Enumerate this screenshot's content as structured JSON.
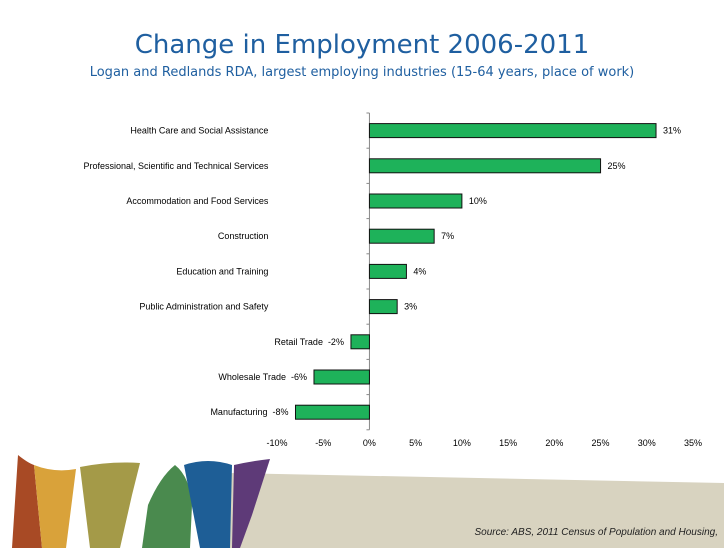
{
  "title": "Change in Employment 2006-2011",
  "subtitle": "Logan and Redlands RDA, largest employing industries (15-64 years, place of work)",
  "source": "Source: ABS, 2011 Census of Population and Housing,",
  "colors": {
    "title": "#1f5fa0",
    "bar": "#1eb25a",
    "band_1": "#a84a25",
    "band_2": "#d9a23a",
    "band_3": "#a49a48",
    "band_4": "#4a8a4e",
    "band_5": "#1e5e96",
    "band_6": "#5e3a78",
    "footer_bg": "#d8d3c0"
  },
  "chart_data": {
    "type": "bar",
    "orientation": "horizontal",
    "categories": [
      "Health Care and Social Assistance",
      "Professional, Scientific and Technical Services",
      "Accommodation and Food Services",
      "Construction",
      "Education and Training",
      "Public Administration and Safety",
      "Retail Trade",
      "Wholesale Trade",
      "Manufacturing"
    ],
    "values": [
      31,
      25,
      10,
      7,
      4,
      3,
      -2,
      -6,
      -8
    ],
    "data_labels": [
      "31%",
      "25%",
      "10%",
      "7%",
      "4%",
      "3%",
      "-2%",
      "-6%",
      "-8%"
    ],
    "xlim": [
      -10,
      35
    ],
    "xticks": [
      -10,
      -5,
      0,
      5,
      10,
      15,
      20,
      25,
      30,
      35
    ],
    "xtick_labels": [
      "-10%",
      "-5%",
      "0%",
      "5%",
      "10%",
      "15%",
      "20%",
      "25%",
      "30%",
      "35%"
    ],
    "grid": false,
    "legend": "none"
  }
}
